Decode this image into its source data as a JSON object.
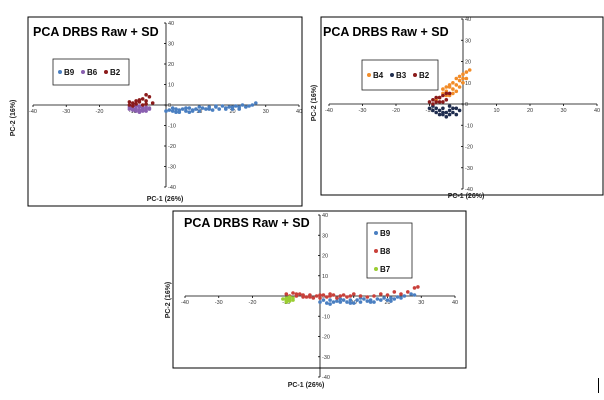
{
  "chart_data": [
    {
      "type": "scatter",
      "title": "PCA DRBS Raw + SD",
      "xlabel": "PC-1 (26%)",
      "ylabel": "PC-2 (16%)",
      "xlim": [
        -40,
        40
      ],
      "ylim": [
        -40,
        40
      ],
      "xticks": [
        "-40",
        "-30",
        "-20",
        "-10",
        "0",
        "10",
        "20",
        "30",
        "40"
      ],
      "yticks": [
        "40",
        "30",
        "20",
        "10",
        "0",
        "-10",
        "-20",
        "-30",
        "-40"
      ],
      "legend_position": "upper-left",
      "series": [
        {
          "name": "B9",
          "color": "#4a7fc1",
          "points": [
            [
              0,
              -3
            ],
            [
              1,
              -2.5
            ],
            [
              2,
              -3
            ],
            [
              3,
              -2
            ],
            [
              4,
              -3.5
            ],
            [
              5,
              -2
            ],
            [
              6,
              -3
            ],
            [
              7,
              -1.5
            ],
            [
              8,
              -2.5
            ],
            [
              9,
              -2
            ],
            [
              10,
              -3
            ],
            [
              11,
              -1.5
            ],
            [
              12,
              -2
            ],
            [
              13,
              -1
            ],
            [
              14,
              -2.5
            ],
            [
              15,
              -1
            ],
            [
              16,
              -2
            ],
            [
              17,
              -0.5
            ],
            [
              18,
              -1.5
            ],
            [
              19,
              -1
            ],
            [
              20,
              -2
            ],
            [
              21,
              -0.5
            ],
            [
              22,
              -1
            ],
            [
              23,
              0
            ],
            [
              24,
              -1
            ],
            [
              26,
              0
            ],
            [
              27,
              1
            ],
            [
              3,
              -3.5
            ],
            [
              8,
              -3
            ],
            [
              13,
              -2
            ],
            [
              18,
              -2
            ],
            [
              22,
              -2
            ],
            [
              25,
              -0.5
            ],
            [
              10,
              -1
            ],
            [
              15,
              -0.5
            ],
            [
              6,
              -1.5
            ],
            [
              2,
              -1.5
            ],
            [
              4,
              -2.5
            ],
            [
              7,
              -3.5
            ],
            [
              20,
              -1
            ]
          ]
        },
        {
          "name": "B6",
          "color": "#8a5fb0",
          "points": [
            [
              -11,
              -1
            ],
            [
              -10,
              0
            ],
            [
              -10,
              -1.5
            ],
            [
              -9,
              -0.5
            ],
            [
              -9,
              -2
            ],
            [
              -8,
              -1
            ],
            [
              -8,
              -2.5
            ],
            [
              -7,
              -1.5
            ],
            [
              -7,
              -2.5
            ],
            [
              -6,
              -2
            ],
            [
              -6,
              -3
            ],
            [
              -5,
              -2
            ],
            [
              -11,
              -2
            ],
            [
              -10,
              -2.5
            ],
            [
              -9,
              -3
            ],
            [
              -8,
              -3.5
            ],
            [
              -7,
              -3
            ],
            [
              -5,
              -1.5
            ],
            [
              -6,
              -1
            ],
            [
              -8,
              -0.5
            ]
          ]
        },
        {
          "name": "B2",
          "color": "#8b1a1a",
          "points": [
            [
              -11,
              0
            ],
            [
              -10,
              1
            ],
            [
              -9,
              2
            ],
            [
              -8,
              1.5
            ],
            [
              -7,
              3
            ],
            [
              -6,
              2
            ],
            [
              -5,
              4
            ],
            [
              -4,
              1
            ],
            [
              -10,
              -0.5
            ],
            [
              -9,
              0.5
            ],
            [
              -7,
              0
            ],
            [
              -8,
              2.5
            ],
            [
              -6,
              5
            ],
            [
              -6,
              0.5
            ],
            [
              -11,
              1.5
            ]
          ]
        }
      ]
    },
    {
      "type": "scatter",
      "title": "PCA DRBS Raw + SD",
      "xlabel": "PC-1 (26%)",
      "ylabel": "PC-2 (16%)",
      "xlim": [
        -40,
        40
      ],
      "ylim": [
        -40,
        40
      ],
      "xticks": [
        "-40",
        "-30",
        "-20",
        "-10",
        "0",
        "10",
        "20",
        "30",
        "40"
      ],
      "yticks": [
        "40",
        "30",
        "20",
        "10",
        "0",
        "-10",
        "-20",
        "-30",
        "-40"
      ],
      "legend_position": "upper-left",
      "series": [
        {
          "name": "B4",
          "color": "#f28c28",
          "points": [
            [
              -8,
              2
            ],
            [
              -7,
              3
            ],
            [
              -6,
              5
            ],
            [
              -5,
              6
            ],
            [
              -4,
              8
            ],
            [
              -4,
              4
            ],
            [
              -3,
              10
            ],
            [
              -3,
              7
            ],
            [
              -2,
              12
            ],
            [
              -2,
              9
            ],
            [
              -1,
              13
            ],
            [
              -1,
              11
            ],
            [
              0,
              14
            ],
            [
              0,
              10
            ],
            [
              1,
              15
            ],
            [
              1,
              12
            ],
            [
              2,
              16
            ],
            [
              -5,
              4
            ],
            [
              -6,
              7
            ],
            [
              -2,
              6
            ],
            [
              -3,
              5
            ],
            [
              -1,
              8
            ],
            [
              -4,
              9
            ],
            [
              0,
              12
            ],
            [
              -5,
              8
            ]
          ]
        },
        {
          "name": "B3",
          "color": "#1f2d4f",
          "points": [
            [
              -10,
              -2
            ],
            [
              -9,
              -3
            ],
            [
              -8,
              -4
            ],
            [
              -7,
              -3
            ],
            [
              -6,
              -5
            ],
            [
              -5,
              -4
            ],
            [
              -4,
              -3
            ],
            [
              -3,
              -4
            ],
            [
              -2,
              -2
            ],
            [
              -1,
              -3
            ],
            [
              -9,
              -1
            ],
            [
              -7,
              -5
            ],
            [
              -6,
              -2
            ],
            [
              -5,
              -6
            ],
            [
              -4,
              -5
            ],
            [
              -3,
              -2
            ],
            [
              -2,
              -5
            ],
            [
              -8,
              -2
            ],
            [
              -6,
              -4
            ],
            [
              -4,
              -1
            ]
          ]
        },
        {
          "name": "B2",
          "color": "#8b1a1a",
          "points": [
            [
              -10,
              1
            ],
            [
              -9,
              2
            ],
            [
              -8,
              3
            ],
            [
              -7,
              1
            ],
            [
              -6,
              4
            ],
            [
              -5,
              2
            ],
            [
              -4,
              5
            ],
            [
              -9,
              0
            ],
            [
              -7,
              3
            ],
            [
              -6,
              1
            ],
            [
              -8,
              1
            ],
            [
              -5,
              5
            ]
          ]
        }
      ]
    },
    {
      "type": "scatter",
      "title": "PCA DRBS Raw + SD",
      "xlabel": "PC-1 (26%)",
      "ylabel": "PC-2 (16%)",
      "xlim": [
        -40,
        40
      ],
      "ylim": [
        -40,
        40
      ],
      "xticks": [
        "-40",
        "-30",
        "-20",
        "-10",
        "0",
        "10",
        "20",
        "30",
        "40"
      ],
      "yticks": [
        "40",
        "30",
        "20",
        "10",
        "0",
        "-10",
        "-20",
        "-30",
        "-40"
      ],
      "legend_position": "upper-right",
      "series": [
        {
          "name": "B9",
          "color": "#4a7fc1",
          "points": [
            [
              0,
              -3
            ],
            [
              1,
              -2
            ],
            [
              2,
              -3.5
            ],
            [
              3,
              -2
            ],
            [
              4,
              -3
            ],
            [
              5,
              -2.5
            ],
            [
              6,
              -3
            ],
            [
              7,
              -2
            ],
            [
              8,
              -3
            ],
            [
              9,
              -2
            ],
            [
              10,
              -3.5
            ],
            [
              11,
              -2
            ],
            [
              12,
              -3
            ],
            [
              13,
              -1.5
            ],
            [
              14,
              -2.5
            ],
            [
              15,
              -2
            ],
            [
              16,
              -3
            ],
            [
              17,
              -1.5
            ],
            [
              18,
              -2
            ],
            [
              19,
              -1
            ],
            [
              20,
              -2
            ],
            [
              21,
              -1
            ],
            [
              22,
              -1.5
            ],
            [
              23,
              -0.5
            ],
            [
              24,
              -1
            ],
            [
              25,
              0
            ],
            [
              27,
              1
            ],
            [
              28,
              0.5
            ],
            [
              3,
              -4
            ],
            [
              9,
              -3.5
            ],
            [
              15,
              -3
            ],
            [
              21,
              -2.5
            ],
            [
              12,
              -1
            ],
            [
              6,
              -1.5
            ]
          ]
        },
        {
          "name": "B8",
          "color": "#c9403a",
          "points": [
            [
              -10,
              1
            ],
            [
              -9,
              0
            ],
            [
              -8,
              1.5
            ],
            [
              -7,
              0
            ],
            [
              -6,
              1
            ],
            [
              -5,
              0.5
            ],
            [
              -4,
              -0.5
            ],
            [
              -3,
              0.5
            ],
            [
              -2,
              -1
            ],
            [
              -1,
              0
            ],
            [
              0,
              -1
            ],
            [
              1,
              0.5
            ],
            [
              2,
              -0.5
            ],
            [
              3,
              0
            ],
            [
              4,
              0.5
            ],
            [
              5,
              -1
            ],
            [
              6,
              0
            ],
            [
              7,
              0.5
            ],
            [
              8,
              -0.5
            ],
            [
              9,
              0
            ],
            [
              10,
              1
            ],
            [
              12,
              0
            ],
            [
              14,
              -0.5
            ],
            [
              16,
              0
            ],
            [
              18,
              1
            ],
            [
              20,
              0.5
            ],
            [
              22,
              2
            ],
            [
              24,
              1
            ],
            [
              26,
              2
            ],
            [
              28,
              4
            ],
            [
              29,
              4.5
            ],
            [
              -7,
              1
            ],
            [
              -5,
              -0.5
            ],
            [
              -3,
              -0.5
            ],
            [
              0,
              0.5
            ],
            [
              3,
              1
            ]
          ]
        },
        {
          "name": "B7",
          "color": "#9acd32",
          "points": [
            [
              -10,
              -1
            ],
            [
              -10,
              -2
            ],
            [
              -9,
              -1.5
            ],
            [
              -9,
              -2.5
            ],
            [
              -8,
              -2
            ],
            [
              -8,
              -1
            ],
            [
              -11,
              -1.5
            ],
            [
              -10,
              -3
            ],
            [
              -9,
              -0.5
            ]
          ]
        }
      ]
    }
  ]
}
